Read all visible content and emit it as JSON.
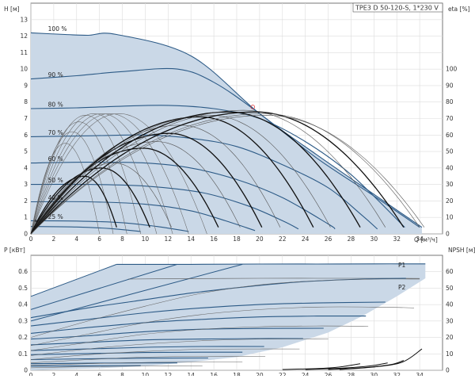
{
  "chart_data": [
    {
      "type": "line",
      "title": "TPE3 D 50-120-S, 1*230 V",
      "xlabel": "Q [м³/ч]",
      "ylabel_left": "H [м]",
      "ylabel_right": "eta [%]",
      "xlim": [
        0,
        36
      ],
      "ylim_left": [
        0,
        14
      ],
      "ylim_right": [
        0,
        140
      ],
      "x_ticks": [
        0,
        2,
        4,
        6,
        8,
        10,
        12,
        14,
        16,
        18,
        20,
        22,
        24,
        26,
        28,
        30,
        32,
        34
      ],
      "y_ticks_left": [
        0,
        1,
        2,
        3,
        4,
        5,
        6,
        7,
        8,
        9,
        10,
        11,
        12,
        13
      ],
      "y_ticks_right": [
        0,
        10,
        20,
        30,
        40,
        50,
        60,
        70,
        80,
        90,
        100
      ],
      "grid": true,
      "head_curves": [
        {
          "name": "100 %",
          "points": [
            [
              0,
              12.2
            ],
            [
              3,
              12.1
            ],
            [
              5,
              12.05
            ],
            [
              7.5,
              12.1
            ],
            [
              14,
              10.8
            ],
            [
              20,
              7.3
            ],
            [
              25,
              4.8
            ],
            [
              30,
              2.4
            ],
            [
              34.2,
              0.4
            ]
          ]
        },
        {
          "name": "90 %",
          "points": [
            [
              0,
              9.4
            ],
            [
              4,
              9.6
            ],
            [
              8,
              9.85
            ],
            [
              12.8,
              10.0
            ],
            [
              16,
              9.2
            ],
            [
              20,
              7.3
            ],
            [
              25,
              4.6
            ],
            [
              30,
              2.3
            ],
            [
              34.0,
              0.4
            ]
          ]
        },
        {
          "name": "80 %",
          "points": [
            [
              0,
              7.6
            ],
            [
              4,
              7.65
            ],
            [
              8,
              7.75
            ],
            [
              12,
              7.8
            ],
            [
              16,
              7.6
            ],
            [
              20,
              7.0
            ],
            [
              24,
              5.6
            ],
            [
              28,
              3.6
            ],
            [
              32.7,
              0.4
            ]
          ]
        },
        {
          "name": "70 %",
          "points": [
            [
              0,
              5.9
            ],
            [
              5,
              5.95
            ],
            [
              10,
              6.0
            ],
            [
              14,
              5.8
            ],
            [
              18,
              5.3
            ],
            [
              22,
              4.2
            ],
            [
              26,
              2.8
            ],
            [
              29,
              1.1
            ],
            [
              30.3,
              0.3
            ]
          ]
        },
        {
          "name": "60 %",
          "points": [
            [
              0,
              4.3
            ],
            [
              5,
              4.35
            ],
            [
              10,
              4.3
            ],
            [
              14,
              4.0
            ],
            [
              18,
              3.3
            ],
            [
              22,
              2.2
            ],
            [
              26,
              0.6
            ],
            [
              26.6,
              0.3
            ]
          ]
        },
        {
          "name": "50 %",
          "points": [
            [
              0,
              3.0
            ],
            [
              5,
              3.0
            ],
            [
              10,
              2.9
            ],
            [
              15,
              2.5
            ],
            [
              19,
              1.7
            ],
            [
              22,
              0.8
            ],
            [
              23.4,
              0.3
            ]
          ]
        },
        {
          "name": "40 %",
          "points": [
            [
              0,
              1.95
            ],
            [
              5,
              1.95
            ],
            [
              10,
              1.8
            ],
            [
              14,
              1.4
            ],
            [
              17,
              0.8
            ],
            [
              19.6,
              0.2
            ]
          ]
        },
        {
          "name": "25 %",
          "points": [
            [
              0,
              0.8
            ],
            [
              4,
              0.78
            ],
            [
              8,
              0.68
            ],
            [
              11,
              0.45
            ],
            [
              13.8,
              0.15
            ]
          ]
        },
        {
          "name": "  %",
          "points": [
            [
              0,
              0.45
            ],
            [
              4,
              0.42
            ],
            [
              7,
              0.32
            ],
            [
              9.6,
              0.15
            ]
          ]
        }
      ],
      "eta_peaks": [
        {
          "x0": 7.5,
          "xp": 4.7,
          "yp": 35,
          "bold": true
        },
        {
          "x0": 10.4,
          "xp": 6.2,
          "yp": 40,
          "bold": true
        },
        {
          "x0": 12.3,
          "xp": 7.3,
          "yp": 43,
          "bold": false
        },
        {
          "x0": 16.4,
          "xp": 9.8,
          "yp": 52,
          "bold": true
        },
        {
          "x0": 18.3,
          "xp": 11.0,
          "yp": 56,
          "bold": false
        },
        {
          "x0": 20.2,
          "xp": 12.1,
          "yp": 61,
          "bold": true
        },
        {
          "x0": 21.8,
          "xp": 13.1,
          "yp": 66,
          "bold": false
        },
        {
          "x0": 24.7,
          "xp": 14.8,
          "yp": 71,
          "bold": true
        },
        {
          "x0": 26.2,
          "xp": 15.7,
          "yp": 72,
          "bold": false
        },
        {
          "x0": 28.8,
          "xp": 17.3,
          "yp": 74,
          "bold": true
        },
        {
          "x0": 31.0,
          "xp": 18.6,
          "yp": 75,
          "bold": false
        },
        {
          "x0": 32.6,
          "xp": 19.6,
          "yp": 74,
          "bold": true
        },
        {
          "x0": 34.0,
          "xp": 20.4,
          "yp": 73,
          "bold": false
        },
        {
          "x0": 34.4,
          "xp": 20.6,
          "yp": 72,
          "bold": false
        }
      ],
      "eta_fan": [
        {
          "x0": 5.0,
          "xp": 3.0,
          "yp": 55
        },
        {
          "x0": 6.0,
          "xp": 3.6,
          "yp": 62
        },
        {
          "x0": 7.0,
          "xp": 4.2,
          "yp": 68
        },
        {
          "x0": 8.0,
          "xp": 4.8,
          "yp": 72
        },
        {
          "x0": 9.2,
          "xp": 5.5,
          "yp": 73
        },
        {
          "x0": 10.4,
          "xp": 6.2,
          "yp": 73
        },
        {
          "x0": 11.5,
          "xp": 6.9,
          "yp": 73
        },
        {
          "x0": 12.8,
          "xp": 7.7,
          "yp": 73
        }
      ],
      "marker": {
        "x": 19.4,
        "y": 7.7
      }
    },
    {
      "type": "line",
      "title": "",
      "xlabel": "",
      "ylabel_left": "P [кВт]",
      "ylabel_right": "NPSH [м]",
      "xlim": [
        0,
        36
      ],
      "ylim_left": [
        0,
        0.7
      ],
      "ylim_right": [
        0,
        70
      ],
      "x_ticks": [
        0,
        2,
        4,
        6,
        8,
        10,
        12,
        14,
        16,
        18,
        20,
        22,
        24,
        26,
        28,
        30,
        32,
        34
      ],
      "y_ticks_left": [
        0,
        0.1,
        0.2,
        0.3,
        0.4,
        0.5,
        0.6
      ],
      "y_ticks_right": [
        0,
        10,
        20,
        30,
        40,
        50,
        60
      ],
      "grid": true,
      "curve_labels": [
        "P1",
        "P2"
      ],
      "power_curves": [
        {
          "bold": true,
          "points": [
            [
              0,
              0.32
            ],
            [
              5,
              0.38
            ],
            [
              9,
              0.42
            ],
            [
              14,
              0.47
            ],
            [
              19,
              0.51
            ],
            [
              24,
              0.54
            ],
            [
              29,
              0.555
            ],
            [
              32.8,
              0.56
            ]
          ]
        },
        {
          "bold": true,
          "points": [
            [
              0,
              0.27
            ],
            [
              5,
              0.31
            ],
            [
              10,
              0.35
            ],
            [
              15,
              0.38
            ],
            [
              20,
              0.4
            ],
            [
              25,
              0.41
            ],
            [
              31,
              0.415
            ]
          ]
        },
        {
          "bold": true,
          "points": [
            [
              0,
              0.225
            ],
            [
              5,
              0.26
            ],
            [
              10,
              0.29
            ],
            [
              15,
              0.31
            ],
            [
              20,
              0.325
            ],
            [
              25,
              0.33
            ],
            [
              29.3,
              0.33
            ]
          ]
        },
        {
          "bold": true,
          "points": [
            [
              0,
              0.19
            ],
            [
              5,
              0.21
            ],
            [
              10,
              0.235
            ],
            [
              15,
              0.25
            ],
            [
              20,
              0.255
            ],
            [
              25.6,
              0.256
            ]
          ]
        },
        {
          "bold": true,
          "points": [
            [
              0,
              0.155
            ],
            [
              5,
              0.17
            ],
            [
              10,
              0.185
            ],
            [
              15,
              0.19
            ],
            [
              20,
              0.193
            ],
            [
              23.8,
              0.193
            ]
          ]
        },
        {
          "bold": true,
          "points": [
            [
              0,
              0.12
            ],
            [
              5,
              0.13
            ],
            [
              10,
              0.14
            ],
            [
              15,
              0.145
            ],
            [
              20.4,
              0.145
            ]
          ]
        },
        {
          "bold": true,
          "points": [
            [
              0,
              0.095
            ],
            [
              5,
              0.102
            ],
            [
              10,
              0.108
            ],
            [
              15,
              0.11
            ],
            [
              18.5,
              0.11
            ]
          ]
        },
        {
          "bold": true,
          "points": [
            [
              0,
              0.065
            ],
            [
              5,
              0.07
            ],
            [
              10,
              0.074
            ],
            [
              15.5,
              0.075
            ]
          ]
        },
        {
          "bold": true,
          "points": [
            [
              0,
              0.04
            ],
            [
              5,
              0.043
            ],
            [
              10,
              0.045
            ],
            [
              12.8,
              0.045
            ]
          ]
        },
        {
          "bold": true,
          "points": [
            [
              0,
              0.025
            ],
            [
              5,
              0.027
            ],
            [
              9.6,
              0.028
            ]
          ]
        },
        {
          "bold": false,
          "points": [
            [
              0,
              0.2
            ],
            [
              5,
              0.3
            ],
            [
              10,
              0.39
            ],
            [
              15,
              0.47
            ],
            [
              20,
              0.52
            ],
            [
              25,
              0.545
            ],
            [
              30,
              0.555
            ],
            [
              34,
              0.555
            ]
          ]
        },
        {
          "bold": false,
          "points": [
            [
              0,
              0.15
            ],
            [
              5,
              0.22
            ],
            [
              10,
              0.29
            ],
            [
              15,
              0.34
            ],
            [
              20,
              0.37
            ],
            [
              25,
              0.385
            ],
            [
              30,
              0.385
            ],
            [
              33.5,
              0.38
            ]
          ]
        },
        {
          "bold": false,
          "points": [
            [
              0,
              0.12
            ],
            [
              5,
              0.17
            ],
            [
              10,
              0.22
            ],
            [
              15,
              0.25
            ],
            [
              20,
              0.265
            ],
            [
              25,
              0.27
            ],
            [
              29.5,
              0.268
            ]
          ]
        },
        {
          "bold": false,
          "points": [
            [
              0,
              0.09
            ],
            [
              5,
              0.13
            ],
            [
              10,
              0.16
            ],
            [
              15,
              0.18
            ],
            [
              20,
              0.19
            ],
            [
              26,
              0.19
            ]
          ]
        },
        {
          "bold": false,
          "points": [
            [
              0,
              0.065
            ],
            [
              5,
              0.095
            ],
            [
              10,
              0.115
            ],
            [
              15,
              0.128
            ],
            [
              20,
              0.13
            ],
            [
              23.5,
              0.13
            ]
          ]
        },
        {
          "bold": false,
          "points": [
            [
              0,
              0.045
            ],
            [
              5,
              0.065
            ],
            [
              10,
              0.08
            ],
            [
              15,
              0.085
            ],
            [
              20.5,
              0.085
            ]
          ]
        },
        {
          "bold": false,
          "points": [
            [
              0,
              0.03
            ],
            [
              5,
              0.04
            ],
            [
              10,
              0.048
            ],
            [
              15,
              0.05
            ],
            [
              18.5,
              0.05
            ]
          ]
        },
        {
          "bold": false,
          "points": [
            [
              0,
              0.015
            ],
            [
              5,
              0.022
            ],
            [
              10,
              0.026
            ],
            [
              15,
              0.027
            ]
          ]
        }
      ],
      "p1_line": [
        [
          7.5,
          0.645
        ],
        [
          14,
          0.645
        ],
        [
          20,
          0.647
        ],
        [
          25,
          0.647
        ],
        [
          30,
          0.648
        ],
        [
          34.5,
          0.648
        ]
      ],
      "p2_line": [
        [
          8.5,
          0.555
        ],
        [
          14,
          0.558
        ],
        [
          20,
          0.56
        ],
        [
          25,
          0.56
        ],
        [
          30,
          0.56
        ],
        [
          34,
          0.559
        ]
      ],
      "upper_fan": [
        {
          "x0": 0,
          "y0": 0.45,
          "x1": 7.5,
          "y1": 0.645
        },
        {
          "x0": 0,
          "y0": 0.37,
          "x1": 12.8,
          "y1": 0.645
        },
        {
          "x0": 0,
          "y0": 0.3,
          "x1": 18.5,
          "y1": 0.645
        }
      ],
      "npsh_curves": [
        [
          [
            22,
            0.005
          ],
          [
            25,
            0.01
          ],
          [
            27,
            0.02
          ],
          [
            28.8,
            0.04
          ]
        ],
        [
          [
            24,
            0.005
          ],
          [
            27,
            0.012
          ],
          [
            29.5,
            0.025
          ],
          [
            31.2,
            0.045
          ]
        ],
        [
          [
            26,
            0.005
          ],
          [
            29,
            0.015
          ],
          [
            31.5,
            0.035
          ],
          [
            32.6,
            0.06
          ]
        ],
        [
          [
            27,
            0.005
          ],
          [
            30,
            0.02
          ],
          [
            32.5,
            0.05
          ],
          [
            34.2,
            0.13
          ]
        ]
      ]
    }
  ]
}
